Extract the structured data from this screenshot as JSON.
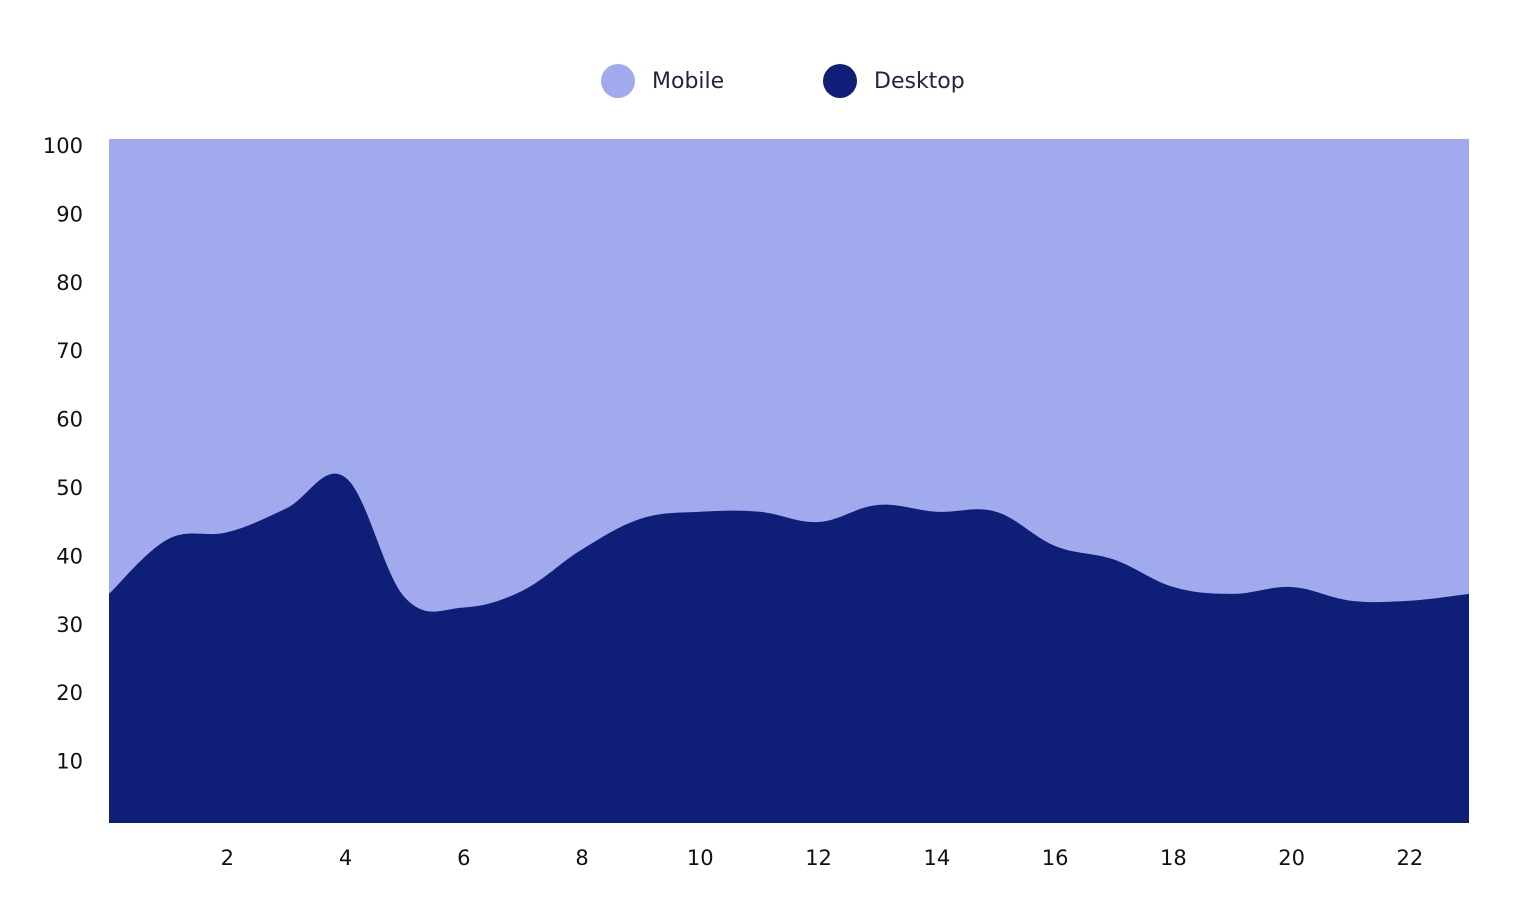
{
  "chart_data": {
    "type": "area",
    "stacked": true,
    "legend_position": "top-center",
    "grid": false,
    "x": [
      0,
      1,
      2,
      3,
      4,
      5,
      6,
      7,
      8,
      9,
      10,
      11,
      12,
      13,
      14,
      15,
      16,
      17,
      18,
      19,
      20,
      21,
      22,
      23
    ],
    "x_ticks": [
      2,
      4,
      6,
      8,
      10,
      12,
      14,
      16,
      18,
      20,
      22
    ],
    "xlim": [
      0,
      23
    ],
    "ylim": [
      0,
      100
    ],
    "y_ticks": [
      10,
      20,
      30,
      40,
      50,
      60,
      70,
      80,
      90,
      100
    ],
    "series": [
      {
        "name": "Desktop",
        "color": "#0f1f78",
        "values": [
          33.5,
          41.5,
          42.5,
          46,
          50.5,
          33,
          31.5,
          34,
          40,
          44.5,
          45.5,
          45.5,
          44,
          46.5,
          45.5,
          45.5,
          40.5,
          38.5,
          34.5,
          33.5,
          34.5,
          32.5,
          32.5,
          33.5
        ]
      },
      {
        "name": "Mobile",
        "color": "#a0aaec",
        "values": [
          66.5,
          58.5,
          57.5,
          54,
          49.5,
          67,
          68.5,
          66,
          60,
          55.5,
          54.5,
          54.5,
          56,
          53.5,
          54.5,
          54.5,
          59.5,
          61.5,
          65.5,
          66.5,
          65.5,
          67.5,
          67.5,
          66.5
        ]
      }
    ]
  }
}
